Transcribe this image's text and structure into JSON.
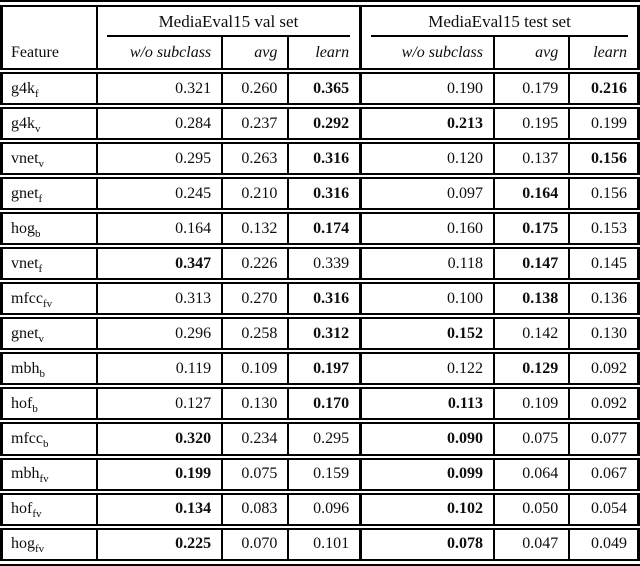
{
  "table": {
    "groups": [
      {
        "label": "MediaEval15 val set"
      },
      {
        "label": "MediaEval15 test set"
      }
    ],
    "feature_header": "Feature",
    "subheaders": [
      "w/o subclass",
      "avg",
      "learn",
      "w/o subclass",
      "avg",
      "learn"
    ],
    "rows": [
      {
        "feature_base": "g4k",
        "feature_sub": "f",
        "values": [
          "0.321",
          "0.260",
          "0.365",
          "0.190",
          "0.179",
          "0.216"
        ],
        "bold": [
          false,
          false,
          true,
          false,
          false,
          true
        ]
      },
      {
        "feature_base": "g4k",
        "feature_sub": "v",
        "values": [
          "0.284",
          "0.237",
          "0.292",
          "0.213",
          "0.195",
          "0.199"
        ],
        "bold": [
          false,
          false,
          true,
          true,
          false,
          false
        ]
      },
      {
        "feature_base": "vnet",
        "feature_sub": "v",
        "values": [
          "0.295",
          "0.263",
          "0.316",
          "0.120",
          "0.137",
          "0.156"
        ],
        "bold": [
          false,
          false,
          true,
          false,
          false,
          true
        ]
      },
      {
        "feature_base": "gnet",
        "feature_sub": "f",
        "values": [
          "0.245",
          "0.210",
          "0.316",
          "0.097",
          "0.164",
          "0.156"
        ],
        "bold": [
          false,
          false,
          true,
          false,
          true,
          false
        ]
      },
      {
        "feature_base": "hog",
        "feature_sub": "b",
        "values": [
          "0.164",
          "0.132",
          "0.174",
          "0.160",
          "0.175",
          "0.153"
        ],
        "bold": [
          false,
          false,
          true,
          false,
          true,
          false
        ]
      },
      {
        "feature_base": "vnet",
        "feature_sub": "f",
        "values": [
          "0.347",
          "0.226",
          "0.339",
          "0.118",
          "0.147",
          "0.145"
        ],
        "bold": [
          true,
          false,
          false,
          false,
          true,
          false
        ]
      },
      {
        "feature_base": "mfcc",
        "feature_sub": "fv",
        "values": [
          "0.313",
          "0.270",
          "0.316",
          "0.100",
          "0.138",
          "0.136"
        ],
        "bold": [
          false,
          false,
          true,
          false,
          true,
          false
        ]
      },
      {
        "feature_base": "gnet",
        "feature_sub": "v",
        "values": [
          "0.296",
          "0.258",
          "0.312",
          "0.152",
          "0.142",
          "0.130"
        ],
        "bold": [
          false,
          false,
          true,
          true,
          false,
          false
        ]
      },
      {
        "feature_base": "mbh",
        "feature_sub": "b",
        "values": [
          "0.119",
          "0.109",
          "0.197",
          "0.122",
          "0.129",
          "0.092"
        ],
        "bold": [
          false,
          false,
          true,
          false,
          true,
          false
        ]
      },
      {
        "feature_base": "hof",
        "feature_sub": "b",
        "values": [
          "0.127",
          "0.130",
          "0.170",
          "0.113",
          "0.109",
          "0.092"
        ],
        "bold": [
          false,
          false,
          true,
          true,
          false,
          false
        ]
      },
      {
        "feature_base": "mfcc",
        "feature_sub": "b",
        "values": [
          "0.320",
          "0.234",
          "0.295",
          "0.090",
          "0.075",
          "0.077"
        ],
        "bold": [
          true,
          false,
          false,
          true,
          false,
          false
        ]
      },
      {
        "feature_base": "mbh",
        "feature_sub": "fv",
        "values": [
          "0.199",
          "0.075",
          "0.159",
          "0.099",
          "0.064",
          "0.067"
        ],
        "bold": [
          true,
          false,
          false,
          true,
          false,
          false
        ]
      },
      {
        "feature_base": "hof",
        "feature_sub": "fv",
        "values": [
          "0.134",
          "0.083",
          "0.096",
          "0.102",
          "0.050",
          "0.054"
        ],
        "bold": [
          true,
          false,
          false,
          true,
          false,
          false
        ]
      },
      {
        "feature_base": "hog",
        "feature_sub": "fv",
        "values": [
          "0.225",
          "0.070",
          "0.101",
          "0.078",
          "0.047",
          "0.049"
        ],
        "bold": [
          true,
          false,
          false,
          true,
          false,
          false
        ]
      }
    ]
  }
}
